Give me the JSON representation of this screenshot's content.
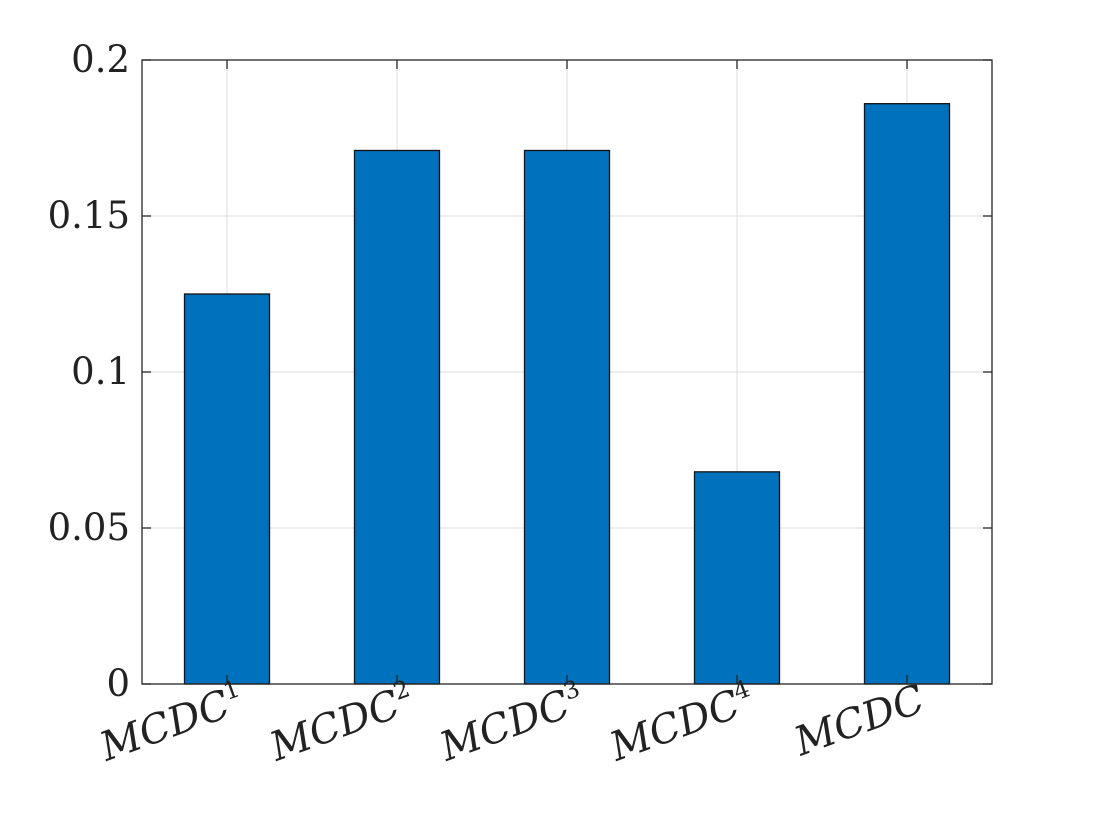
{
  "chart_data": {
    "type": "bar",
    "title": "",
    "xlabel": "",
    "ylabel": "",
    "categories": [
      {
        "base": "MCDC",
        "sup": "1"
      },
      {
        "base": "MCDC",
        "sup": "2"
      },
      {
        "base": "MCDC",
        "sup": "3"
      },
      {
        "base": "MCDC",
        "sup": "4"
      },
      {
        "base": "MCDC",
        "sup": ""
      }
    ],
    "values": [
      0.125,
      0.171,
      0.171,
      0.068,
      0.186
    ],
    "ylim": [
      0,
      0.2
    ],
    "yticks": [
      "0",
      "0.05",
      "0.1",
      "0.15",
      "0.2"
    ],
    "grid": true,
    "bar_color": "#0072BD",
    "axis_color": "#262626",
    "grid_color": "#DCDCDC"
  }
}
